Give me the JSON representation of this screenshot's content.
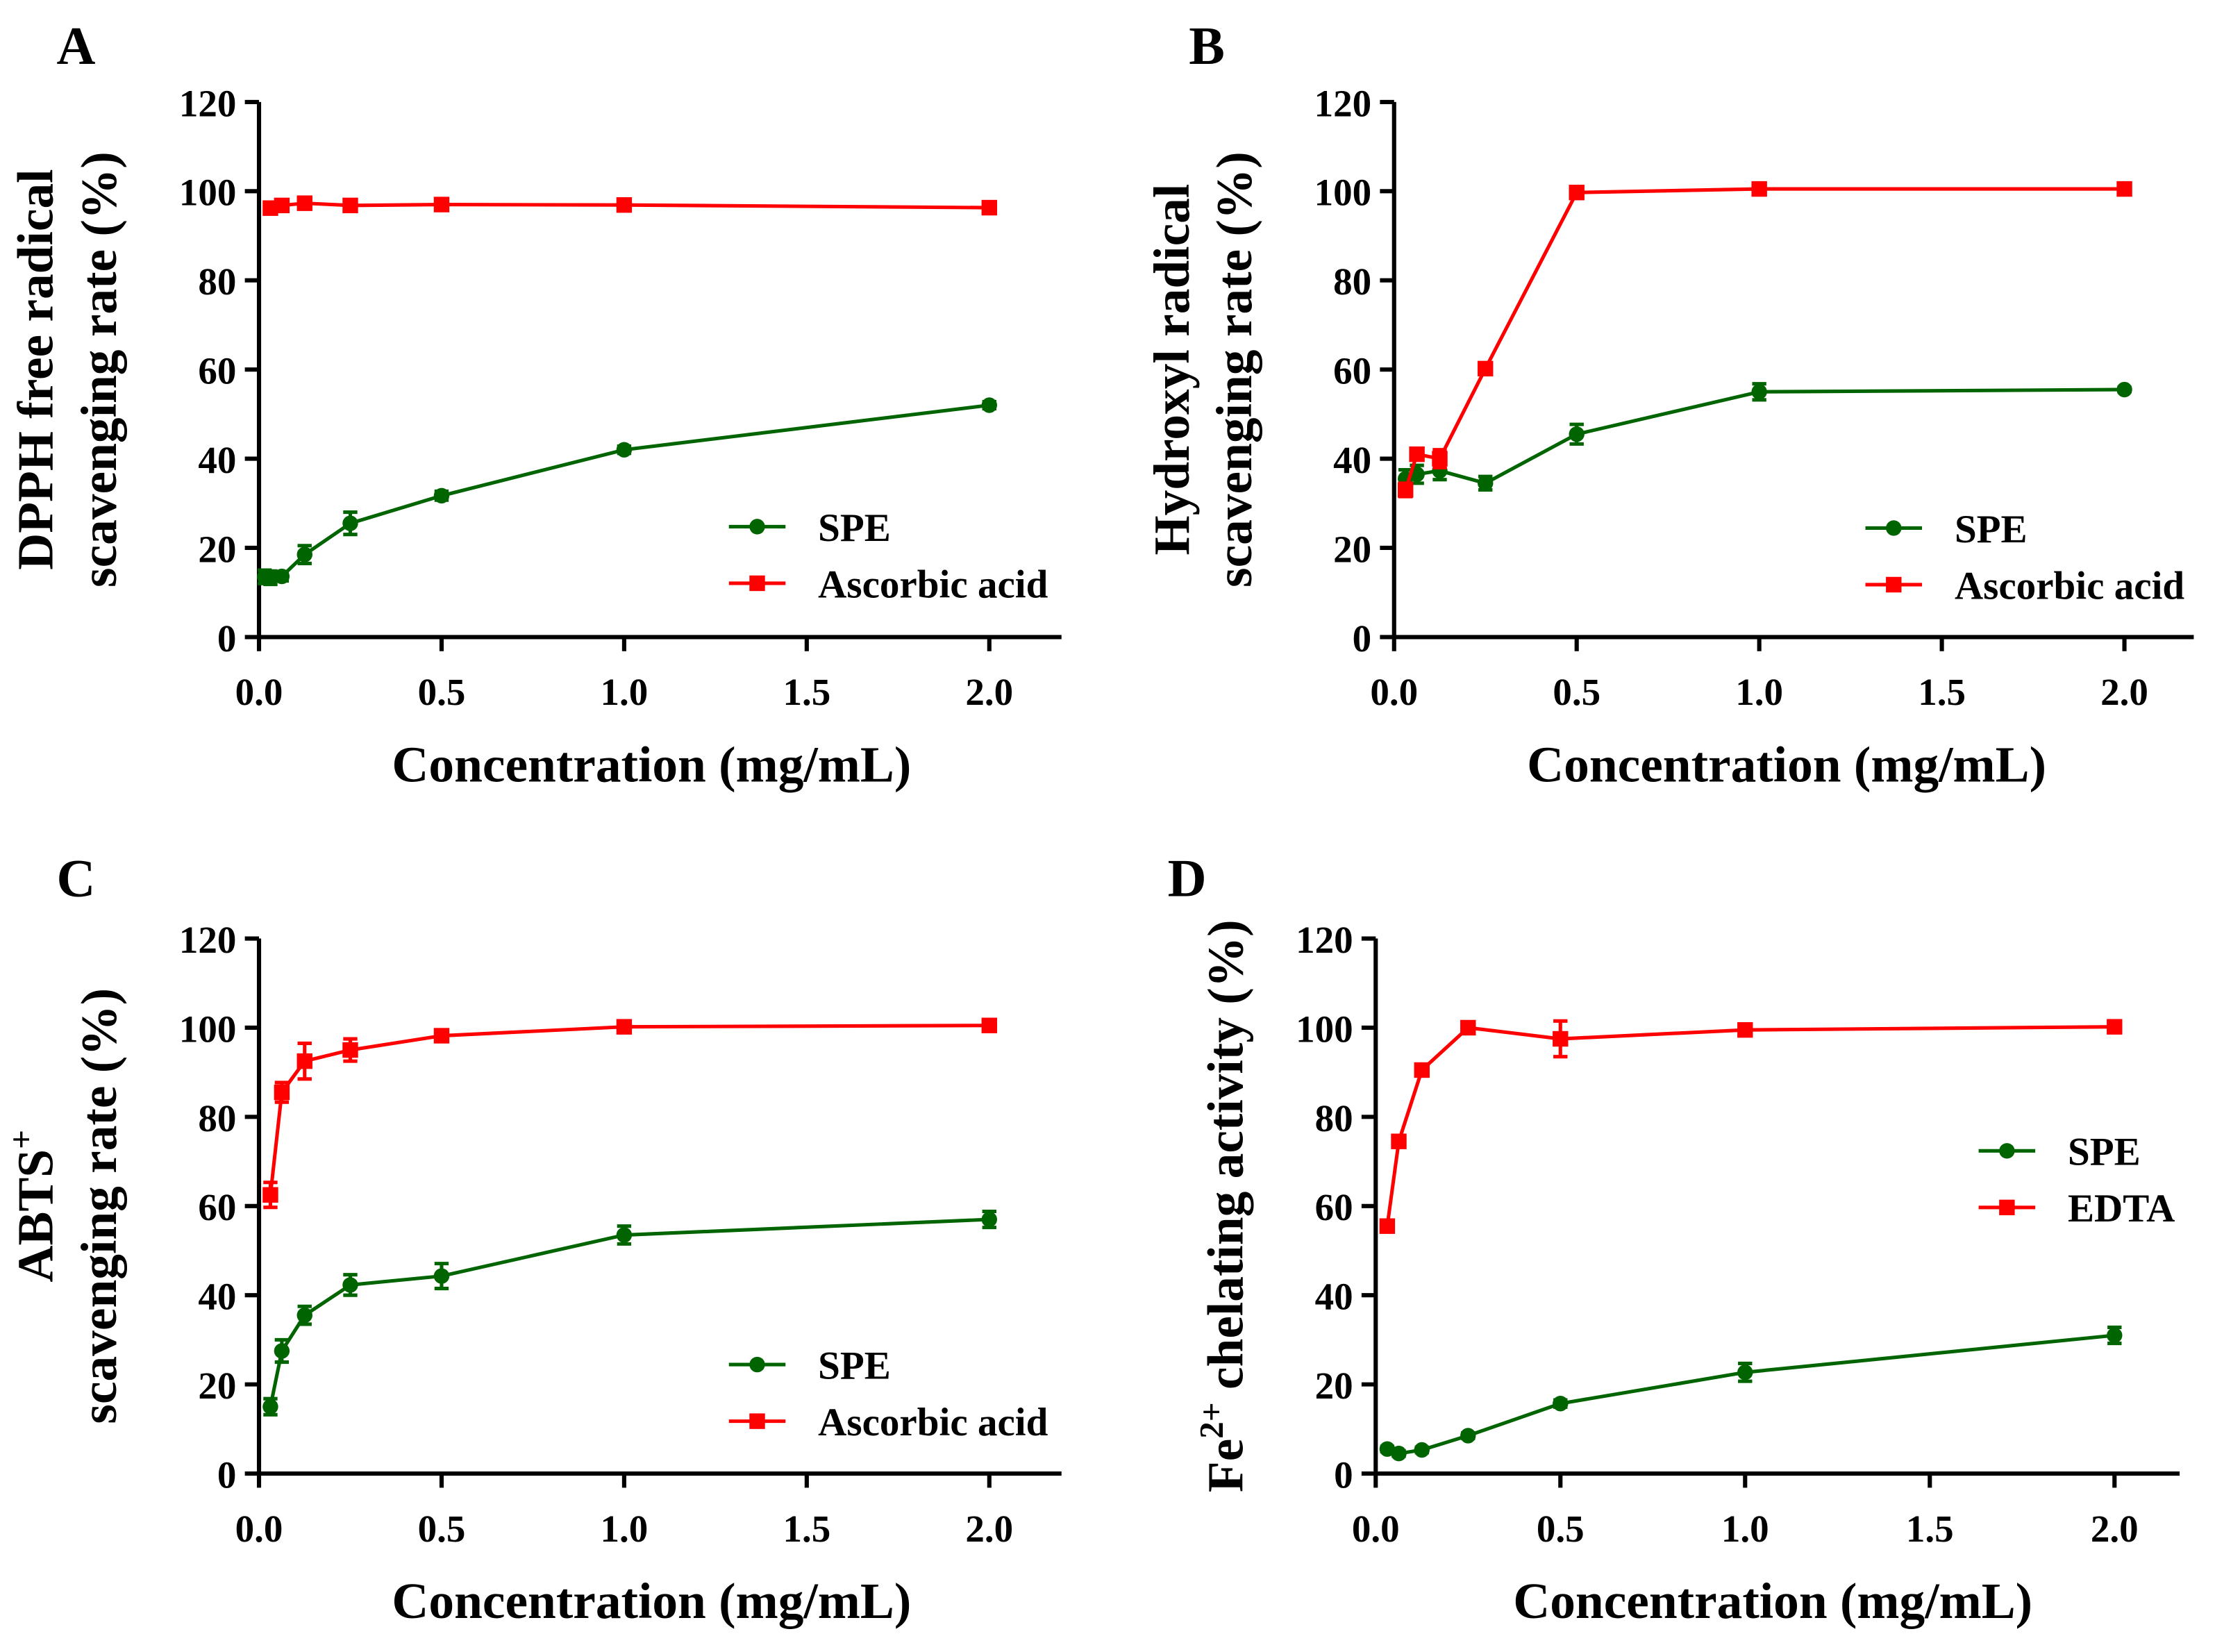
{
  "chart_data": [
    {
      "panel_label": "A",
      "type": "line",
      "ylabel_lines": [
        "DPPH free radical",
        "scavenging rate (%)"
      ],
      "xlabel": "Concentration (mg/mL)",
      "xlim": [
        0,
        2.1
      ],
      "ylim": [
        0,
        120
      ],
      "xticks": [
        "0.0",
        "0.5",
        "1.0",
        "1.5",
        "2.0"
      ],
      "xtick_values": [
        0,
        0.5,
        1,
        1.5,
        2
      ],
      "yticks": [
        "0",
        "20",
        "40",
        "60",
        "80",
        "100",
        "120"
      ],
      "ytick_values": [
        0,
        20,
        40,
        60,
        80,
        100,
        120
      ],
      "legend_position": "bottom-right",
      "series": [
        {
          "name": "SPE",
          "color": "#006400",
          "marker": "circle",
          "x": [
            0.015625,
            0.03125,
            0.0625,
            0.125,
            0.25,
            0.5,
            1,
            2
          ],
          "y": [
            13.5,
            13.3,
            13.6,
            18.5,
            25.5,
            31.7,
            42,
            52
          ],
          "err": [
            1.5,
            1.5,
            1,
            2,
            2.5,
            1,
            0.8,
            0.8
          ]
        },
        {
          "name": "Ascorbic acid",
          "color": "#ff0000",
          "marker": "square",
          "x": [
            0.03125,
            0.0625,
            0.125,
            0.25,
            0.5,
            1,
            2
          ],
          "y": [
            96.2,
            96.8,
            97.3,
            96.8,
            97,
            96.9,
            96.3
          ],
          "err": [
            0.5,
            0.5,
            0.5,
            0.5,
            0.5,
            0.5,
            0.5
          ]
        }
      ]
    },
    {
      "panel_label": "B",
      "type": "line",
      "ylabel_lines": [
        "Hydroxyl radical",
        "scavenging rate (%)"
      ],
      "xlabel": "Concentration (mg/mL)",
      "xlim": [
        0,
        2.1
      ],
      "ylim": [
        0,
        120
      ],
      "xticks": [
        "0.0",
        "0.5",
        "1.0",
        "1.5",
        "2.0"
      ],
      "xtick_values": [
        0,
        0.5,
        1,
        1.5,
        2
      ],
      "yticks": [
        "0",
        "20",
        "40",
        "60",
        "80",
        "100",
        "120"
      ],
      "ytick_values": [
        0,
        20,
        40,
        60,
        80,
        100,
        120
      ],
      "legend_position": "bottom-right",
      "series": [
        {
          "name": "SPE",
          "color": "#006400",
          "marker": "circle",
          "x": [
            0.03125,
            0.0625,
            0.125,
            0.25,
            0.5,
            1,
            2
          ],
          "y": [
            35.5,
            36.5,
            37.3,
            34.5,
            45.5,
            55,
            55.5
          ],
          "err": [
            2,
            2,
            2,
            1.5,
            2.2,
            1.8,
            0.5
          ]
        },
        {
          "name": "Ascorbic acid",
          "color": "#ff0000",
          "marker": "square",
          "x": [
            0.03125,
            0.0625,
            0.125,
            0.25,
            0.5,
            1,
            2
          ],
          "y": [
            33,
            41,
            40,
            60.2,
            99.7,
            100.5,
            100.5
          ],
          "err": [
            1.5,
            1,
            2,
            0.5,
            0.5,
            0.5,
            0.5
          ]
        }
      ]
    },
    {
      "panel_label": "C",
      "type": "line",
      "ylabel_lines": [
        "ABTS",
        "scavenging rate (%)"
      ],
      "ylabel_superscript": "+",
      "xlabel": "Concentration (mg/mL)",
      "xlim": [
        0,
        2.1
      ],
      "ylim": [
        0,
        120
      ],
      "xticks": [
        "0.0",
        "0.5",
        "1.0",
        "1.5",
        "2.0"
      ],
      "xtick_values": [
        0,
        0.5,
        1,
        1.5,
        2
      ],
      "yticks": [
        "0",
        "20",
        "40",
        "60",
        "80",
        "100",
        "120"
      ],
      "ytick_values": [
        0,
        20,
        40,
        60,
        80,
        100,
        120
      ],
      "legend_position": "bottom-right",
      "series": [
        {
          "name": "SPE",
          "color": "#006400",
          "marker": "circle",
          "x": [
            0.03125,
            0.0625,
            0.125,
            0.25,
            0.5,
            1,
            2
          ],
          "y": [
            15,
            27.5,
            35.5,
            42.3,
            44.3,
            53.5,
            57
          ],
          "err": [
            1.8,
            2.5,
            2,
            2.3,
            2.8,
            2,
            1.8
          ]
        },
        {
          "name": "Ascorbic acid",
          "color": "#ff0000",
          "marker": "square",
          "x": [
            0.03125,
            0.0625,
            0.125,
            0.25,
            0.5,
            1,
            2
          ],
          "y": [
            62.5,
            85.5,
            92.5,
            95,
            98.2,
            100.2,
            100.5
          ],
          "err": [
            2.8,
            2.2,
            4,
            2.5,
            0.8,
            0.5,
            0.5
          ]
        }
      ]
    },
    {
      "panel_label": "D",
      "type": "line",
      "ylabel_lines": [
        "Fe",
        " chelating activity (%)"
      ],
      "ylabel_superscript": "2+",
      "xlabel": "Concentration (mg/mL)",
      "xlim": [
        0,
        2.1
      ],
      "ylim": [
        0,
        120
      ],
      "xticks": [
        "0.0",
        "0.5",
        "1.0",
        "1.5",
        "2.0"
      ],
      "xtick_values": [
        0,
        0.5,
        1,
        1.5,
        2
      ],
      "yticks": [
        "0",
        "20",
        "40",
        "60",
        "80",
        "100",
        "120"
      ],
      "ytick_values": [
        0,
        20,
        40,
        60,
        80,
        100,
        120
      ],
      "legend_position": "center-right",
      "series": [
        {
          "name": "SPE",
          "color": "#006400",
          "marker": "circle",
          "x": [
            0.03125,
            0.0625,
            0.125,
            0.25,
            0.5,
            1,
            2
          ],
          "y": [
            5.5,
            4.5,
            5.3,
            8.5,
            15.7,
            22.7,
            31
          ],
          "err": [
            0.6,
            0.6,
            0.6,
            0.6,
            0.8,
            2,
            1.8
          ]
        },
        {
          "name": "EDTA",
          "color": "#ff0000",
          "marker": "square",
          "x": [
            0.03125,
            0.0625,
            0.125,
            0.25,
            0.5,
            1,
            2
          ],
          "y": [
            55.5,
            74.5,
            90.5,
            100,
            97.5,
            99.5,
            100.2
          ],
          "err": [
            0.8,
            0.8,
            0.8,
            0.5,
            4,
            0.5,
            0.5
          ]
        }
      ]
    }
  ]
}
